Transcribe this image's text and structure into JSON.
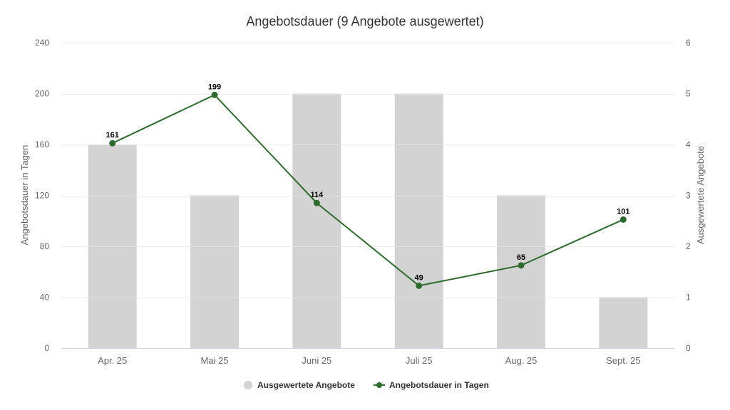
{
  "chart_data": {
    "type": "bar",
    "title": "Angebotsdauer (9 Angebote ausgewertet)",
    "categories": [
      "Apr. 25",
      "Mai 25",
      "Juni 25",
      "Juli 25",
      "Aug. 25",
      "Sept. 25"
    ],
    "series": [
      {
        "name": "Ausgewertete Angebote",
        "type": "bar",
        "axis": "right",
        "color": "#d3d3d3",
        "values": [
          4,
          3,
          5,
          5,
          3,
          1
        ]
      },
      {
        "name": "Angebotsdauer in Tagen",
        "type": "line",
        "axis": "left",
        "color": "#2e6b2e",
        "values": [
          161,
          199,
          114,
          49,
          65,
          101
        ],
        "data_labels": true
      }
    ],
    "ylabel": "Angebotsdauer in Tagen",
    "y2label": "Ausgewertete Angebote",
    "ylim": [
      0,
      240
    ],
    "y2lim": [
      0,
      6
    ],
    "yticks": [
      0,
      40,
      80,
      120,
      160,
      200,
      240
    ],
    "y2ticks": [
      0,
      1,
      2,
      3,
      4,
      5,
      6
    ],
    "grid": true,
    "legend_position": "bottom"
  },
  "legend": [
    {
      "label": "Ausgewertete Angebote",
      "icon": "circle-marker-icon"
    },
    {
      "label": "Angebotsdauer in Tagen",
      "icon": "line-marker-icon"
    }
  ]
}
